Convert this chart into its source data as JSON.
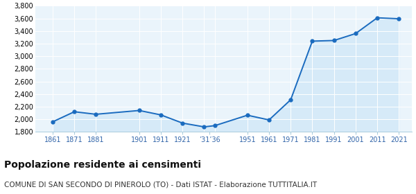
{
  "years": [
    1861,
    1871,
    1881,
    1901,
    1911,
    1921,
    1931,
    1936,
    1951,
    1961,
    1971,
    1981,
    1991,
    2001,
    2011,
    2021
  ],
  "population": [
    1960,
    2120,
    2080,
    2140,
    2070,
    1940,
    1880,
    1900,
    2065,
    1990,
    2310,
    3240,
    3250,
    3360,
    3610,
    3595
  ],
  "xtick_positions": [
    1861,
    1871,
    1881,
    1901,
    1911,
    1921,
    1933.5,
    1951,
    1961,
    1971,
    1981,
    1991,
    2001,
    2011,
    2021
  ],
  "xtick_labels": [
    "1861",
    "1871",
    "1881",
    "1901",
    "1911",
    "1921",
    "’31’36",
    "1951",
    "1961",
    "1971",
    "1981",
    "1991",
    "2001",
    "2011",
    "2021"
  ],
  "ylim": [
    1800,
    3800
  ],
  "yticks": [
    1800,
    2000,
    2200,
    2400,
    2600,
    2800,
    3000,
    3200,
    3400,
    3600,
    3800
  ],
  "xlim_left": 1853,
  "xlim_right": 2027,
  "line_color": "#1a6bbf",
  "fill_color": "#d6eaf8",
  "marker_color": "#1a6bbf",
  "bg_color": "#eaf4fb",
  "grid_color": "#ffffff",
  "title": "Popolazione residente ai censimenti",
  "subtitle": "COMUNE DI SAN SECONDO DI PINEROLO (TO) - Dati ISTAT - Elaborazione TUTTITALIA.IT",
  "title_fontsize": 10,
  "subtitle_fontsize": 7.5,
  "tick_fontsize": 7,
  "ytick_fontsize": 7
}
